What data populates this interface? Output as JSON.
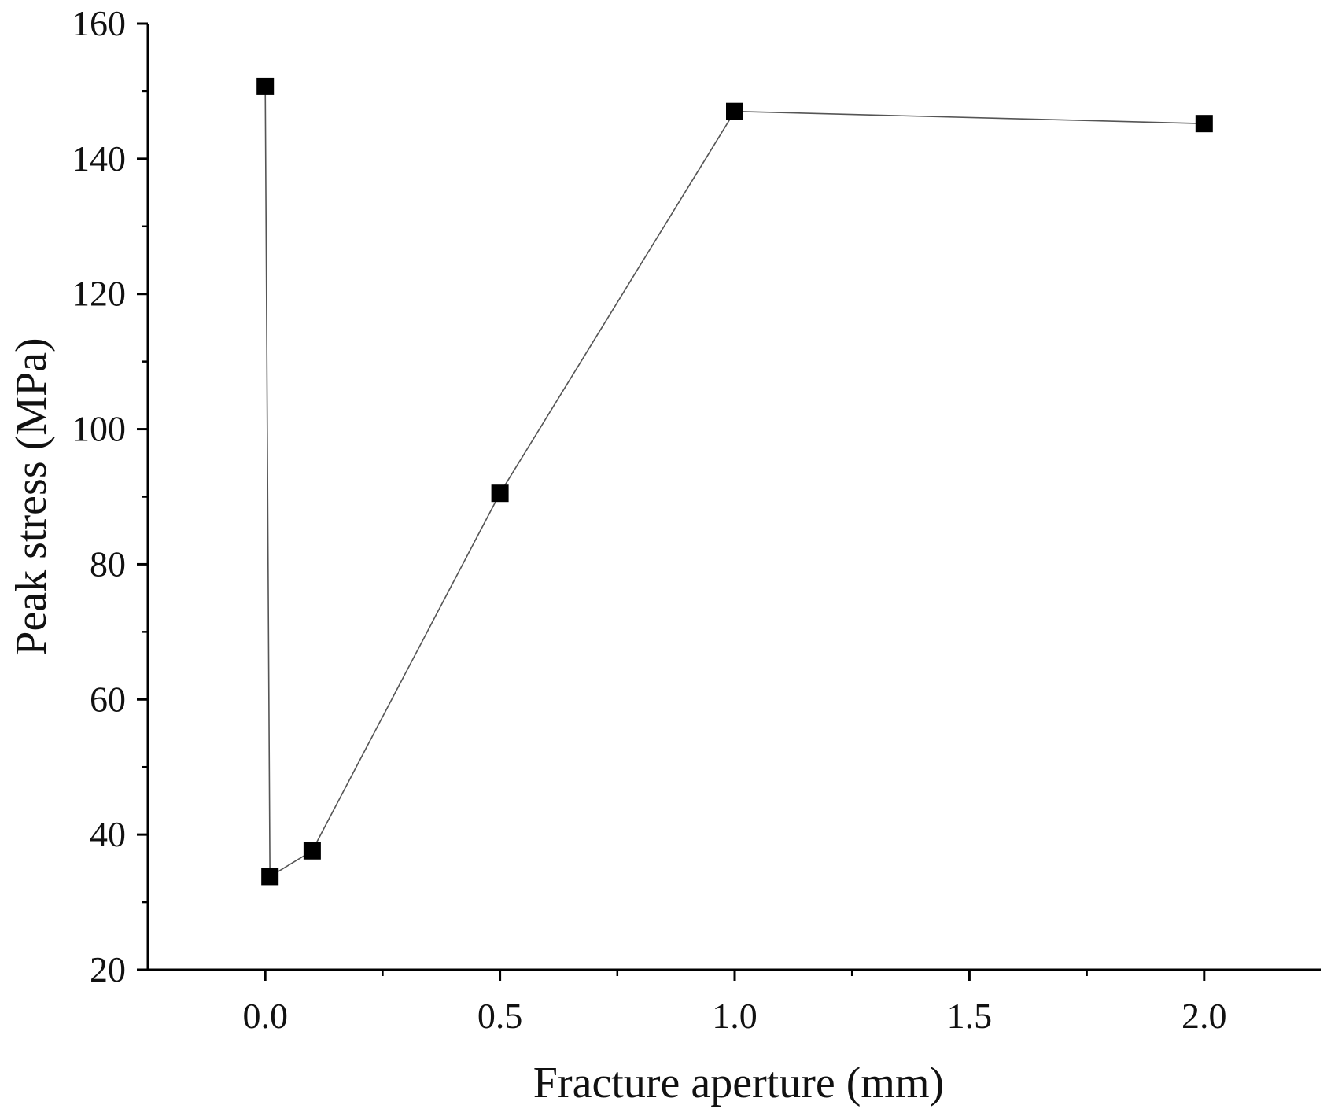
{
  "chart_data": {
    "type": "line",
    "title": "",
    "xlabel": "Fracture aperture (mm)",
    "ylabel": "Peak stress (MPa)",
    "xlim": [
      -0.25,
      2.25
    ],
    "ylim": [
      20,
      160
    ],
    "x_ticks": [
      0.0,
      0.5,
      1.0,
      1.5,
      2.0
    ],
    "x_tick_labels": [
      "0.0",
      "0.5",
      "1.0",
      "1.5",
      "2.0"
    ],
    "x_minor_ticks": [
      0.25,
      0.75,
      1.25,
      1.75
    ],
    "y_ticks": [
      20,
      40,
      60,
      80,
      100,
      120,
      140,
      160
    ],
    "y_tick_labels": [
      "20",
      "40",
      "60",
      "80",
      "100",
      "120",
      "140",
      "160"
    ],
    "y_minor_ticks": [
      30,
      50,
      70,
      90,
      110,
      130,
      150
    ],
    "grid": false,
    "legend": "none",
    "series": [
      {
        "x": [
          0.0,
          0.01,
          0.1,
          0.5,
          1.0,
          2.0
        ],
        "y": [
          150.7,
          33.8,
          37.6,
          90.5,
          147.0,
          145.2
        ],
        "marker": "square",
        "color": "#000000"
      }
    ]
  }
}
